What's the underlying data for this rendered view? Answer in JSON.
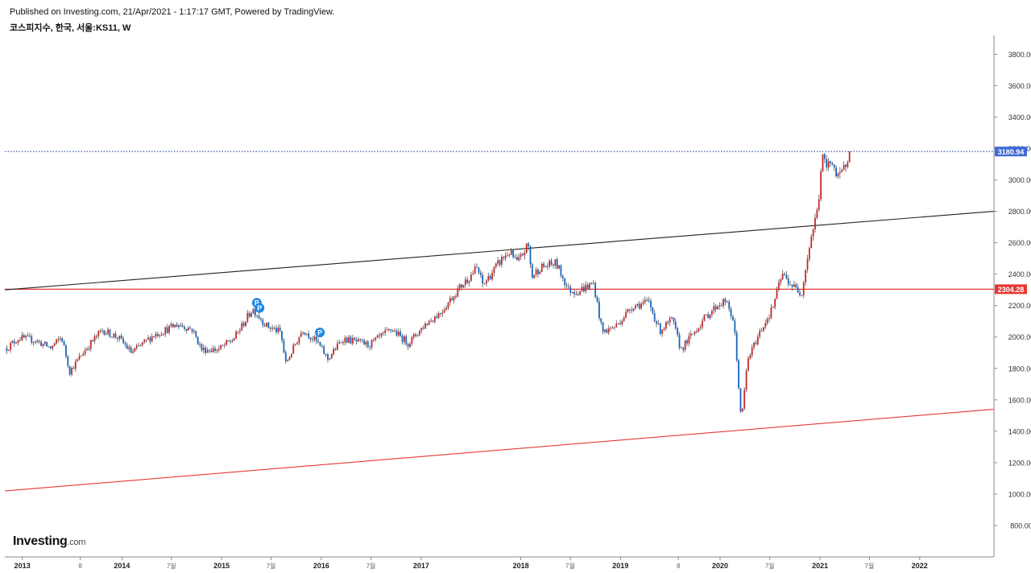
{
  "header": {
    "published": "Published on Investing.com, 21/Apr/2021 - 1:17:17 GMT, Powered by TradingView.",
    "symbol": "코스피지수, 한국, 서울:KS11, W"
  },
  "logo": {
    "brand": "Investing",
    "suffix": ".com"
  },
  "colors": {
    "up": "#c62828",
    "down": "#1565c0",
    "wick": "#555555",
    "trend_black": "#222222",
    "trend_red": "#e53935",
    "current_line": "#1e3fa8",
    "current_badge": "#3d6ad6",
    "support_badge": "#e53935",
    "marker": "#1e88e5"
  },
  "chart_data": {
    "type": "candlestick",
    "interval": "W",
    "x": [
      "2012-11-05",
      "2021-04-19"
    ],
    "xlim": [
      "2012-10-29",
      "2022-09-30"
    ],
    "ylim": [
      600,
      3920
    ],
    "y_ticks": [
      "800.00",
      "1000.00",
      "1200.00",
      "1400.00",
      "1600.00",
      "1800.00",
      "2000.00",
      "2200.00",
      "2400.00",
      "2600.00",
      "2800.00",
      "3000.00",
      "3200.00",
      "3400.00",
      "3600.00",
      "3800.00"
    ],
    "x_ticks": [
      {
        "label": "2013",
        "date": "2013-01-01"
      },
      {
        "label": "8",
        "date": "2013-08-01"
      },
      {
        "label": "2014",
        "date": "2014-01-01"
      },
      {
        "label": "7월",
        "date": "2014-07-01"
      },
      {
        "label": "2015",
        "date": "2015-01-01"
      },
      {
        "label": "7월",
        "date": "2015-07-01"
      },
      {
        "label": "2016",
        "date": "2016-01-01"
      },
      {
        "label": "7월",
        "date": "2016-07-01"
      },
      {
        "label": "2017",
        "date": "2017-01-01"
      },
      {
        "label": "2018",
        "date": "2018-01-01"
      },
      {
        "label": "7월",
        "date": "2018-07-01"
      },
      {
        "label": "2019",
        "date": "2019-01-01"
      },
      {
        "label": "8",
        "date": "2019-08-01"
      },
      {
        "label": "2020",
        "date": "2020-01-01"
      },
      {
        "label": "7월",
        "date": "2020-07-01"
      },
      {
        "label": "2021",
        "date": "2021-01-01"
      },
      {
        "label": "7월",
        "date": "2021-07-01"
      },
      {
        "label": "2022",
        "date": "2022-01-01"
      }
    ],
    "path": [
      [
        "2012-11-05",
        1930
      ],
      [
        "2012-12-20",
        1995
      ],
      [
        "2013-02-15",
        1980
      ],
      [
        "2013-04-15",
        1930
      ],
      [
        "2013-05-25",
        2000
      ],
      [
        "2013-06-24",
        1780
      ],
      [
        "2013-08-15",
        1910
      ],
      [
        "2013-10-20",
        2045
      ],
      [
        "2013-12-20",
        1995
      ],
      [
        "2014-02-05",
        1900
      ],
      [
        "2014-04-25",
        2010
      ],
      [
        "2014-07-25",
        2080
      ],
      [
        "2014-09-15",
        2050
      ],
      [
        "2014-10-20",
        1920
      ],
      [
        "2014-12-20",
        1920
      ],
      [
        "2015-02-15",
        1990
      ],
      [
        "2015-04-25",
        2180
      ],
      [
        "2015-06-15",
        2070
      ],
      [
        "2015-08-05",
        2030
      ],
      [
        "2015-08-24",
        1830
      ],
      [
        "2015-10-25",
        2050
      ],
      [
        "2015-12-20",
        1960
      ],
      [
        "2016-01-25",
        1860
      ],
      [
        "2016-03-20",
        1990
      ],
      [
        "2016-06-24",
        1950
      ],
      [
        "2016-09-15",
        2050
      ],
      [
        "2016-11-15",
        1960
      ],
      [
        "2017-01-15",
        2080
      ],
      [
        "2017-03-15",
        2160
      ],
      [
        "2017-05-15",
        2300
      ],
      [
        "2017-07-25",
        2440
      ],
      [
        "2017-08-15",
        2330
      ],
      [
        "2017-10-25",
        2500
      ],
      [
        "2017-11-20",
        2540
      ],
      [
        "2017-12-20",
        2470
      ],
      [
        "2018-01-28",
        2590
      ],
      [
        "2018-02-10",
        2380
      ],
      [
        "2018-03-10",
        2440
      ],
      [
        "2018-05-10",
        2470
      ],
      [
        "2018-06-25",
        2300
      ],
      [
        "2018-07-25",
        2290
      ],
      [
        "2018-09-25",
        2340
      ],
      [
        "2018-10-26",
        2030
      ],
      [
        "2018-12-15",
        2070
      ],
      [
        "2019-02-15",
        2200
      ],
      [
        "2019-04-15",
        2220
      ],
      [
        "2019-05-25",
        2040
      ],
      [
        "2019-07-10",
        2110
      ],
      [
        "2019-08-10",
        1920
      ],
      [
        "2019-11-10",
        2130
      ],
      [
        "2019-12-20",
        2200
      ],
      [
        "2020-01-20",
        2230
      ],
      [
        "2020-02-20",
        2100
      ],
      [
        "2020-03-19",
        1460
      ],
      [
        "2020-04-10",
        1850
      ],
      [
        "2020-05-25",
        2030
      ],
      [
        "2020-07-10",
        2180
      ],
      [
        "2020-08-15",
        2400
      ],
      [
        "2020-09-25",
        2320
      ],
      [
        "2020-10-25",
        2280
      ],
      [
        "2020-11-25",
        2600
      ],
      [
        "2020-12-25",
        2830
      ],
      [
        "2021-01-08",
        3150
      ],
      [
        "2021-01-25",
        3080
      ],
      [
        "2021-02-15",
        3130
      ],
      [
        "2021-03-05",
        3000
      ],
      [
        "2021-03-25",
        3050
      ],
      [
        "2021-04-19",
        3180.94
      ]
    ],
    "current_price": 3180.94,
    "horizontal_level": 2304.28,
    "trendlines": [
      {
        "color": "black",
        "points": [
          [
            "2012-10-29",
            2300
          ],
          [
            "2022-09-30",
            2800
          ]
        ]
      },
      {
        "color": "red",
        "points": [
          [
            "2012-10-29",
            1020
          ],
          [
            "2022-09-30",
            1540
          ]
        ]
      }
    ],
    "markers": [
      {
        "label": "P",
        "date": "2015-05-10",
        "value": 2218
      },
      {
        "label": "P",
        "date": "2015-05-20",
        "value": 2185
      },
      {
        "label": "P",
        "date": "2015-12-27",
        "value": 2029
      }
    ],
    "current_badge": "3180.94",
    "level_badge": "2304.28"
  }
}
